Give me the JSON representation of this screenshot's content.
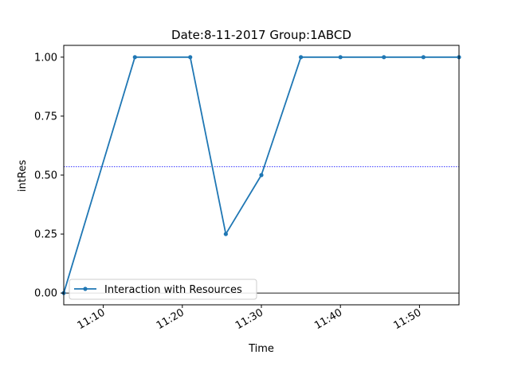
{
  "chart_data": {
    "type": "line",
    "title": "Date:8-11-2017  Group:1ABCD",
    "xlabel": "Time",
    "ylabel": "intRes",
    "xlim": [
      "11:05",
      "11:55"
    ],
    "ylim": [
      -0.05,
      1.05
    ],
    "x_ticks": [
      "11:10",
      "11:20",
      "11:30",
      "11:40",
      "11:50"
    ],
    "y_ticks": [
      "0.00",
      "0.25",
      "0.50",
      "0.75",
      "1.00"
    ],
    "series": [
      {
        "name": "Interaction with Resources",
        "color": "#1f77b4",
        "x": [
          "11:05",
          "11:14",
          "11:21",
          "11:25.5",
          "11:30",
          "11:35",
          "11:40",
          "11:45.5",
          "11:50.5",
          "11:55"
        ],
        "y": [
          0.0,
          1.0,
          1.0,
          0.25,
          0.5,
          1.0,
          1.0,
          1.0,
          1.0,
          1.0
        ]
      }
    ],
    "mean_line": {
      "value": 0.535,
      "color": "#0000ff",
      "style": "dotted"
    },
    "zero_line": {
      "value": 0.0,
      "color": "#000000"
    },
    "legend": "lower-left",
    "grid": false
  }
}
